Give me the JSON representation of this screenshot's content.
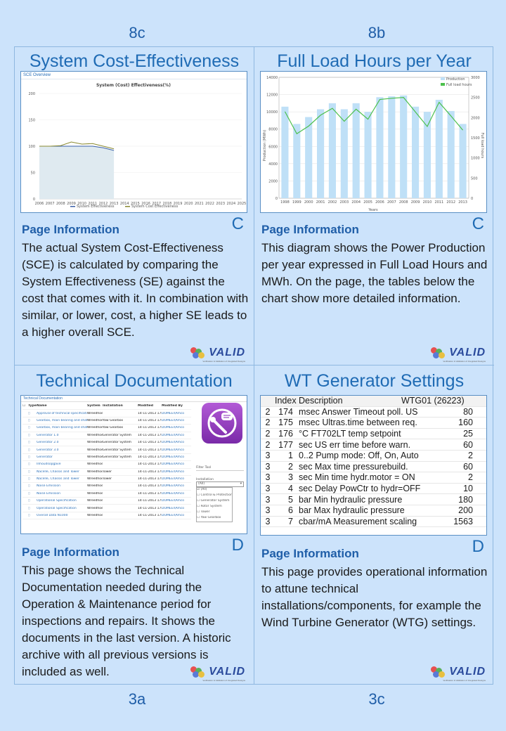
{
  "codes": {
    "top_left": "8c",
    "top_right": "8b",
    "bottom_left": "3a",
    "bottom_right": "3c"
  },
  "valid_logo": {
    "text": "VALID",
    "subtitle": "Verification & Validation of Integrated Designs"
  },
  "panels": {
    "sce": {
      "title": "System Cost-Effectiveness",
      "letter": "C",
      "info_heading": "Page Information",
      "info_text": "The actual System Cost-Effectiveness (SCE) is calculated by comparing the System Effectiveness (SE) against the cost that comes with it. In combination with similar, or lower, cost, a higher SE leads to a higher overall SCE.",
      "screenshot": {
        "header": "SCE Overview",
        "chart_title": "System (Cost) Effectiveness(%)",
        "legend": [
          "System Effectiveness",
          "System Cost Effectiveness"
        ]
      }
    },
    "flh": {
      "title": "Full Load Hours per Year",
      "letter": "C",
      "info_heading": "Page Information",
      "info_text": "This diagram shows the Power Production per year expressed in Full Load Hours and MWh. On the page, the tables below the chart show more detailed information.",
      "screenshot": {
        "legend": [
          "Production",
          "Full load hours"
        ],
        "ylabel_left": "Production (MWh)",
        "ylabel_right": "Full load hours",
        "xlabel": "Years"
      }
    },
    "techdoc": {
      "title": "Technical Documentation",
      "letter": "D",
      "info_heading": "Page Information",
      "info_text": "This page shows the Technical Documentation needed during the Operation & Maintenance period for inspections and repairs. It shows the documents in the last version. A historic archive with all previous versions is included as well.",
      "screenshot": {
        "tab": "Technical Documentation",
        "columns": [
          "Type",
          "Name",
          "System",
          "Installation",
          "Modified",
          "Modified By"
        ],
        "rows": [
          [
            "Approval of technical specification",
            "Wreedhoek",
            "",
            "14-11-2013 17:41",
            "DOMEEl\\Amco"
          ],
          [
            "Gearbox, main bearing and shaft",
            "Wreedhoek",
            "Yaw Gearbox",
            "14-11-2013 17:44",
            "DOMEEl\\Amco"
          ],
          [
            "Gearbox, main bearing and shaft",
            "Wreedhoek",
            "Yaw Gearbox",
            "14-11-2013 17:44",
            "DOMEEl\\Amco"
          ],
          [
            "Generator 1.0",
            "Wreedhoek",
            "Generator System",
            "14-11-2013 17:44",
            "DOMEEl\\Amco"
          ],
          [
            "Generator 2.0",
            "Wreedhoek",
            "Generator System",
            "14-11-2013 17:44",
            "DOMEEl\\Amco"
          ],
          [
            "Generator 3.0",
            "Wreedhoek",
            "Generator System",
            "14-11-2013 17:44",
            "DOMEEl\\Amco"
          ],
          [
            "Generator",
            "Wreedhoek",
            "Generator System",
            "14-11-2013 17:44",
            "DOMEEl\\Amco"
          ],
          [
            "Inhoudsopgave",
            "Wreedhoek",
            "",
            "14-11-2013 17:41",
            "DOMEEl\\Amco"
          ],
          [
            "Nacelle, Chassis and Tower",
            "Wreedhoek",
            "Tower",
            "14-11-2013 17:43",
            "DOMEEl\\Amco"
          ],
          [
            "Nacelle, Chassis and Tower",
            "Wreedhoek",
            "Tower",
            "14-11-2013 17:43",
            "DOMEEl\\Amco"
          ],
          [
            "Noise Emission",
            "Wreedhoek",
            "",
            "14-11-2013 17:41",
            "DOMEEl\\Amco"
          ],
          [
            "Noise Emission",
            "Wreedhoek",
            "",
            "14-11-2013 17:41",
            "DOMEEl\\Amco"
          ],
          [
            "Operational Specification",
            "Wreedhoek",
            "",
            "14-11-2013 17:41",
            "DOMEEl\\Amco"
          ],
          [
            "Operational Specification",
            "Wreedhoek",
            "",
            "14-11-2013 17:41",
            "DOMEEl\\Amco"
          ],
          [
            "Overall Data N1000",
            "Wreedhoek",
            "",
            "14-11-2013 17:41",
            "DOMEEl\\Amco"
          ]
        ],
        "filter": {
          "title": "Filter Tool",
          "installation_label": "Installation",
          "selected": "(All)",
          "options": [
            "(All)",
            "Control & Protection Sys",
            "Generator System",
            "Rotor System",
            "Tower",
            "Yaw Gearbox"
          ]
        }
      }
    },
    "gen": {
      "title": "WT Generator Settings",
      "letter": "D",
      "info_heading": "Page Information",
      "info_text": "This page provides operational information to attune technical installations/components, for example the Wind Turbine Generator (WTG) settings.",
      "screenshot": {
        "columns": [
          "",
          "Index",
          "Description",
          "WTG01 (26223)"
        ],
        "rows": [
          [
            "2",
            "174",
            "msec Answer Timeout poll. US",
            "80"
          ],
          [
            "2",
            "175",
            "msec Ultras.time between req.",
            "160"
          ],
          [
            "2",
            "176",
            "°C   FT702LT temp setpoint",
            "25"
          ],
          [
            "2",
            "177",
            "sec  US err time before warn.",
            "60"
          ],
          [
            "3",
            "1",
            "0..2 Pump mode: Off, On, Auto",
            "2"
          ],
          [
            "3",
            "2",
            "sec  Max time pressurebuild.",
            "60"
          ],
          [
            "3",
            "3",
            "sec  Min time hydr.motor = ON",
            "2"
          ],
          [
            "3",
            "4",
            "sec  Delay PowCtr to hydr=OFF",
            "10"
          ],
          [
            "3",
            "5",
            "bar  Min hydraulic pressure",
            "180"
          ],
          [
            "3",
            "6",
            "bar  Max hydraulic pressure",
            "200"
          ],
          [
            "3",
            "7",
            "cbar/mA  Measurement scaling",
            "1563"
          ]
        ]
      }
    }
  },
  "chart_data": [
    {
      "type": "line",
      "title": "System (Cost) Effectiveness(%)",
      "x": [
        2006,
        2007,
        2008,
        2009,
        2010,
        2011,
        2012,
        2013,
        2014,
        2015,
        2016,
        2017,
        2018,
        2019,
        2020,
        2021,
        2022,
        2023,
        2024,
        2025
      ],
      "series": [
        {
          "name": "System Effectiveness",
          "x": [
            2006,
            2007,
            2008,
            2009,
            2010,
            2011,
            2012,
            2013
          ],
          "values": [
            100,
            100,
            100,
            100,
            100,
            100,
            97,
            92
          ]
        },
        {
          "name": "System Cost Effectiveness",
          "x": [
            2006,
            2007,
            2008,
            2009,
            2010,
            2011,
            2012,
            2013
          ],
          "values": [
            100,
            100,
            101,
            108,
            104,
            105,
            100,
            95
          ]
        }
      ],
      "ylim": [
        0,
        200
      ],
      "yticks": [
        0,
        50,
        100,
        150,
        200
      ],
      "colors": {
        "se": "#3a5fa8",
        "sce": "#8a8a30",
        "fill": "#dfeaf0"
      }
    },
    {
      "type": "bar",
      "categories": [
        "1998",
        "1999",
        "2000",
        "2001",
        "2002",
        "2003",
        "2004",
        "2005",
        "2006",
        "2007",
        "2008",
        "2009",
        "2010",
        "2011",
        "2012",
        "2013"
      ],
      "series": [
        {
          "name": "Production",
          "type": "bar",
          "values": [
            10600,
            8600,
            9400,
            10300,
            11000,
            10300,
            11000,
            10000,
            11700,
            11800,
            11900,
            10600,
            10000,
            11400,
            10100,
            8600
          ]
        },
        {
          "name": "Full load hours",
          "type": "line",
          "axis": "right",
          "values": [
            2150,
            1600,
            1790,
            2060,
            2230,
            1910,
            2210,
            1960,
            2450,
            2480,
            2500,
            2140,
            1780,
            2380,
            2040,
            1690
          ]
        }
      ],
      "ylim_left": [
        0,
        14000
      ],
      "yticks_left": [
        0,
        2000,
        4000,
        6000,
        8000,
        10000,
        12000,
        14000
      ],
      "ylim_right": [
        0,
        3000
      ],
      "yticks_right": [
        0,
        500,
        1000,
        1500,
        2000,
        2500,
        3000
      ],
      "xlabel": "Years",
      "ylabel": "Production (MWh)",
      "ylabel_right": "Full load hours",
      "colors": {
        "bar": "#bfe0f7",
        "line": "#4cc04c"
      }
    }
  ]
}
